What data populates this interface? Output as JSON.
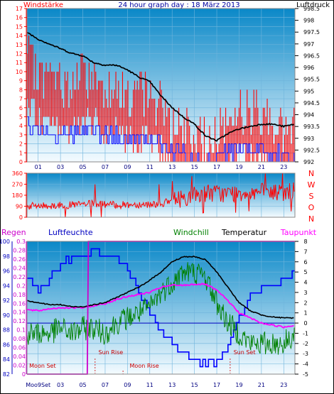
{
  "header": {
    "left_label": "Windstärke",
    "title": "24 hour graph day : 18 März 2013",
    "right_label": "Luftdruck"
  },
  "dir_labels": [
    "N",
    "W",
    "S",
    "O",
    "N"
  ],
  "bottom_header": {
    "regen": "Regen",
    "luftfeuchte": "Luftfeuchte",
    "windchill": "Windchill",
    "temperatur": "Temperatur",
    "taupunkt": "Taupunkt"
  },
  "annotations": {
    "moon_set": "Moon Set",
    "sun_rise": "Sun Rise",
    "moon_rise": "Moon Rise",
    "sun_set": "Sun Set"
  },
  "colors": {
    "wind": "#ff0000",
    "gust_bars": "#ff0000",
    "wind_avg": "#0000ff",
    "pressure": "#000000",
    "direction": "#ff0000",
    "humidity": "#0000ff",
    "windchill": "#008000",
    "temperature": "#000000",
    "dewpoint": "#ff00ff",
    "rain": "#cc00cc",
    "bg_top": "#0a88c8",
    "bg_bottom": "#f4fbff"
  },
  "chart_data": [
    {
      "type": "line",
      "title": "24 hour graph day : 18 März 2013",
      "x_ticks": [
        "01",
        "03",
        "05",
        "07",
        "09",
        "11",
        "13",
        "15",
        "17",
        "19",
        "21",
        "23"
      ],
      "xlim": [
        0,
        24
      ],
      "y_left_label": "Windstärke",
      "y_left_ticks": [
        "0",
        "1",
        "2",
        "3",
        "4",
        "5",
        "6",
        "7",
        "8",
        "9",
        "10",
        "11",
        "12",
        "13",
        "14",
        "15",
        "16",
        "17"
      ],
      "y_left_lim": [
        0,
        17
      ],
      "y_right_label": "Luftdruck",
      "y_right_ticks": [
        "992",
        "992.5",
        "993",
        "993.5",
        "994",
        "994.5",
        "995",
        "995.5",
        "996",
        "996.5",
        "997",
        "997.5",
        "998",
        "998.5"
      ],
      "y_right_lim": [
        992,
        998.5
      ],
      "series": [
        {
          "name": "Windstärke",
          "x": [
            0,
            1,
            2,
            3,
            4,
            5,
            6,
            7,
            8,
            9,
            10,
            11,
            12,
            13,
            14,
            15,
            16,
            17,
            18,
            19,
            20,
            21,
            22,
            23,
            24
          ],
          "values": [
            11,
            9,
            9,
            8,
            8,
            9,
            9,
            8,
            8,
            7,
            7,
            7,
            6,
            4,
            3,
            2,
            2,
            3,
            4,
            5,
            5,
            5,
            4,
            3,
            3
          ]
        },
        {
          "name": "Luftdruck",
          "x": [
            0,
            1,
            2,
            3,
            4,
            5,
            6,
            7,
            8,
            9,
            10,
            11,
            12,
            13,
            14,
            15,
            16,
            17,
            18,
            19,
            20,
            21,
            22,
            23,
            24
          ],
          "values": [
            997.5,
            997.2,
            997,
            996.8,
            996.6,
            996.5,
            996.2,
            996.1,
            996.1,
            995.9,
            995.6,
            995.4,
            994.8,
            994.3,
            993.9,
            993.6,
            993.1,
            992.9,
            993.2,
            993.4,
            993.5,
            993.6,
            993.6,
            993.5,
            993.6
          ]
        }
      ]
    },
    {
      "type": "line",
      "y_ticks": [
        "0",
        "90",
        "180",
        "270",
        "360"
      ],
      "ylim": [
        0,
        360
      ],
      "xlim": [
        0,
        24
      ],
      "series": [
        {
          "name": "Windrichtung",
          "x": [
            0,
            2,
            4,
            6,
            8,
            10,
            12,
            14,
            16,
            18,
            20,
            22,
            24
          ],
          "values": [
            90,
            95,
            100,
            110,
            100,
            105,
            110,
            160,
            200,
            190,
            210,
            200,
            210
          ]
        }
      ]
    },
    {
      "type": "line",
      "x_ticks": [
        "Moo9Set",
        "03",
        "05",
        "07",
        "09",
        "11",
        "13",
        "15",
        "17",
        "19",
        "21",
        "23"
      ],
      "xlim": [
        0,
        24
      ],
      "y_left_label": "Luftfeuchte",
      "y_left_ticks": [
        "82",
        "84",
        "86",
        "88",
        "90",
        "92",
        "94",
        "96",
        "98",
        "100"
      ],
      "y_left_lim": [
        82,
        100
      ],
      "y_rain_label": "Regen",
      "y_rain_ticks": [
        "0",
        "0.02",
        "0.04",
        "0.06",
        "0.08",
        "0.1",
        "0.12",
        "0.14",
        "0.16",
        "0.18",
        "0.2",
        "0.22",
        "0.24",
        "0.26",
        "0.28",
        "0.3"
      ],
      "y_rain_lim": [
        0,
        0.3
      ],
      "y_right_ticks": [
        "-5",
        "-4",
        "-3",
        "-2",
        "-1",
        "0",
        "1",
        "2",
        "3",
        "4",
        "5",
        "6",
        "7",
        "8"
      ],
      "y_right_lim": [
        -5,
        8
      ],
      "series": [
        {
          "name": "Luftfeuchte",
          "x": [
            0,
            1,
            2,
            3,
            4,
            5,
            6,
            7,
            8,
            9,
            10,
            11,
            12,
            13,
            14,
            15,
            16,
            17,
            18,
            19,
            20,
            21,
            22,
            23,
            24
          ],
          "values": [
            95,
            93,
            95,
            97,
            98,
            98,
            99,
            98,
            98,
            96,
            93,
            90,
            88,
            86,
            85,
            84,
            83,
            84,
            86,
            90,
            93,
            94,
            94,
            95,
            96
          ]
        },
        {
          "name": "Windchill",
          "x": [
            0,
            1,
            2,
            3,
            4,
            5,
            6,
            7,
            8,
            9,
            10,
            11,
            12,
            13,
            14,
            15,
            16,
            17,
            18,
            19,
            20,
            21,
            22,
            23,
            24
          ],
          "values": [
            -1,
            -1,
            -1,
            -0.5,
            -1,
            -0.5,
            -0.5,
            -1,
            0,
            0.5,
            1,
            1.5,
            3,
            4,
            5,
            5,
            4.5,
            2,
            0,
            -1,
            -2,
            -2,
            -2,
            -2,
            -1
          ]
        },
        {
          "name": "Temperatur",
          "x": [
            0,
            1,
            2,
            3,
            4,
            5,
            6,
            7,
            8,
            9,
            10,
            11,
            12,
            13,
            14,
            15,
            16,
            17,
            18,
            19,
            20,
            21,
            22,
            23,
            24
          ],
          "values": [
            2.2,
            2,
            1.8,
            1.8,
            1.6,
            1.6,
            1.8,
            2,
            2.5,
            3,
            3.5,
            4.2,
            5,
            6,
            6.5,
            6.5,
            6.2,
            5,
            3.5,
            2,
            1.2,
            0.8,
            0.6,
            0.5,
            0.5
          ]
        },
        {
          "name": "Taupunkt",
          "x": [
            0,
            1,
            2,
            3,
            4,
            5,
            6,
            7,
            8,
            9,
            10,
            11,
            12,
            13,
            14,
            15,
            16,
            17,
            18,
            19,
            20,
            21,
            22,
            23,
            24
          ],
          "values": [
            1.3,
            1.2,
            1.4,
            1.5,
            1.5,
            1.5,
            1.7,
            1.9,
            2.3,
            2.6,
            2.8,
            3,
            3.5,
            3.7,
            3.7,
            3.8,
            3.8,
            3.2,
            2.2,
            1,
            0.5,
            0,
            -0.2,
            -0.4,
            -0.2
          ]
        },
        {
          "name": "Regen",
          "x": [
            0,
            5.4,
            5.5,
            24
          ],
          "values": [
            0,
            0,
            0.3,
            0.3
          ]
        }
      ]
    }
  ]
}
